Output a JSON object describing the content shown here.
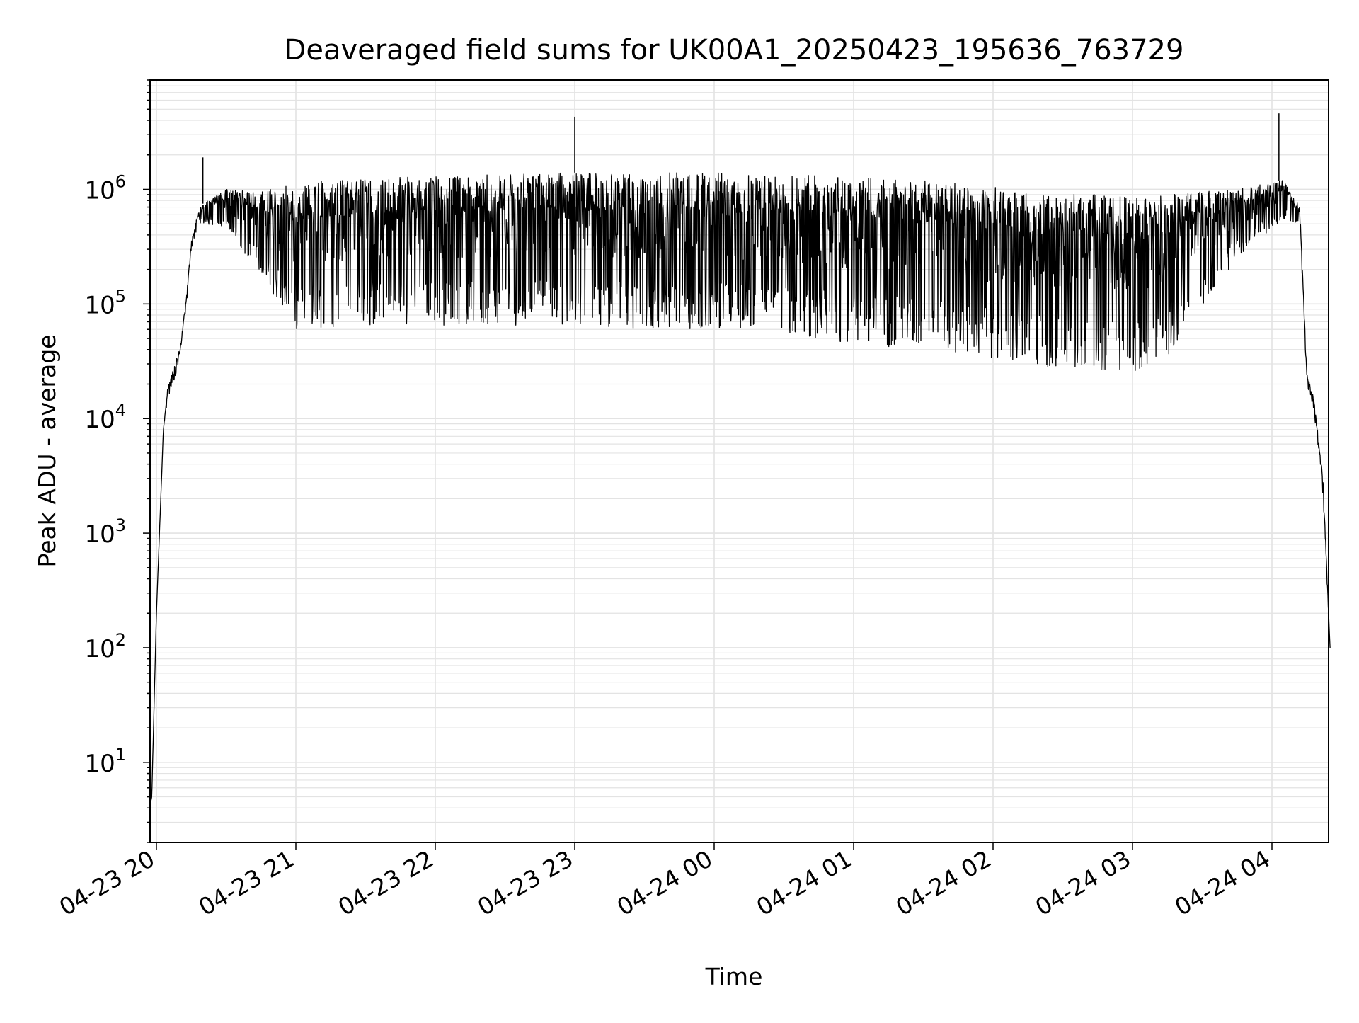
{
  "chart_data": {
    "type": "line",
    "title": "Deaveraged field sums for UK00A1_20250423_195636_763729",
    "xlabel": "Time",
    "ylabel": "Peak ADU - average",
    "yscale": "log",
    "ylim": [
      2,
      9000000
    ],
    "xlim": [
      "2025-04-23 19:57",
      "2025-04-24 04:26"
    ],
    "x_ticks": [
      "04-23 20",
      "04-23 21",
      "04-23 22",
      "04-23 23",
      "04-24 00",
      "04-24 01",
      "04-24 02",
      "04-24 03",
      "04-24 04"
    ],
    "y_ticks": [
      {
        "base": "10",
        "exp": "1"
      },
      {
        "base": "10",
        "exp": "2"
      },
      {
        "base": "10",
        "exp": "3"
      },
      {
        "base": "10",
        "exp": "4"
      },
      {
        "base": "10",
        "exp": "5"
      },
      {
        "base": "10",
        "exp": "6"
      }
    ],
    "grid": true,
    "line_color": "#000000",
    "grid_color": "#e3e3e3",
    "series": [
      {
        "upper_envelope": [
          [
            "2025-04-23 19:57",
            4
          ],
          [
            "2025-04-23 19:58",
            5
          ],
          [
            "2025-04-23 20:00",
            200
          ],
          [
            "2025-04-23 20:03",
            8000
          ],
          [
            "2025-04-23 20:05",
            20000
          ],
          [
            "2025-04-23 20:10",
            40000
          ],
          [
            "2025-04-23 20:13",
            120000
          ],
          [
            "2025-04-23 20:15",
            350000
          ],
          [
            "2025-04-23 20:18",
            650000
          ],
          [
            "2025-04-23 20:20",
            750000
          ],
          [
            "2025-04-23 20:30",
            1000000
          ],
          [
            "2025-04-23 20:45",
            950000
          ],
          [
            "2025-04-23 21:00",
            1150000
          ],
          [
            "2025-04-23 21:30",
            1250000
          ],
          [
            "2025-04-23 22:00",
            1300000
          ],
          [
            "2025-04-23 22:30",
            1350000
          ],
          [
            "2025-04-23 23:00",
            1400000
          ],
          [
            "2025-04-23 23:30",
            1400000
          ],
          [
            "2025-04-24 00:00",
            1400000
          ],
          [
            "2025-04-24 00:30",
            1350000
          ],
          [
            "2025-04-24 01:00",
            1300000
          ],
          [
            "2025-04-24 01:30",
            1200000
          ],
          [
            "2025-04-24 02:00",
            1050000
          ],
          [
            "2025-04-24 02:30",
            950000
          ],
          [
            "2025-04-24 03:00",
            850000
          ],
          [
            "2025-04-24 03:30",
            950000
          ],
          [
            "2025-04-24 03:50",
            1050000
          ],
          [
            "2025-04-24 04:05",
            1200000
          ],
          [
            "2025-04-24 04:12",
            700000
          ],
          [
            "2025-04-24 04:15",
            25000
          ],
          [
            "2025-04-24 04:18",
            15000
          ],
          [
            "2025-04-24 04:22",
            3000
          ],
          [
            "2025-04-24 04:25",
            100
          ]
        ],
        "lower_envelope": [
          [
            "2025-04-23 19:57",
            4
          ],
          [
            "2025-04-23 19:58",
            5
          ],
          [
            "2025-04-23 20:00",
            200
          ],
          [
            "2025-04-23 20:03",
            8000
          ],
          [
            "2025-04-23 20:05",
            15000
          ],
          [
            "2025-04-23 20:10",
            30000
          ],
          [
            "2025-04-23 20:13",
            100000
          ],
          [
            "2025-04-23 20:15",
            300000
          ],
          [
            "2025-04-23 20:18",
            500000
          ],
          [
            "2025-04-23 20:30",
            450000
          ],
          [
            "2025-04-23 20:45",
            180000
          ],
          [
            "2025-04-23 21:00",
            60000
          ],
          [
            "2025-04-23 21:30",
            65000
          ],
          [
            "2025-04-23 22:00",
            65000
          ],
          [
            "2025-04-23 22:30",
            65000
          ],
          [
            "2025-04-23 23:00",
            65000
          ],
          [
            "2025-04-23 23:30",
            60000
          ],
          [
            "2025-04-24 00:00",
            60000
          ],
          [
            "2025-04-24 00:30",
            55000
          ],
          [
            "2025-04-24 01:00",
            45000
          ],
          [
            "2025-04-24 01:30",
            40000
          ],
          [
            "2025-04-24 02:00",
            32000
          ],
          [
            "2025-04-24 02:30",
            27000
          ],
          [
            "2025-04-24 03:00",
            25000
          ],
          [
            "2025-04-24 03:15",
            35000
          ],
          [
            "2025-04-24 03:30",
            90000
          ],
          [
            "2025-04-24 03:45",
            250000
          ],
          [
            "2025-04-24 04:00",
            450000
          ],
          [
            "2025-04-24 04:05",
            550000
          ],
          [
            "2025-04-24 04:12",
            500000
          ],
          [
            "2025-04-24 04:15",
            20000
          ],
          [
            "2025-04-24 04:18",
            12000
          ],
          [
            "2025-04-24 04:22",
            2000
          ],
          [
            "2025-04-24 04:25",
            100
          ]
        ],
        "spikes": [
          [
            "2025-04-23 20:20",
            1900000
          ],
          [
            "2025-04-23 23:00",
            4300000
          ],
          [
            "2025-04-24 04:03",
            4600000
          ]
        ]
      }
    ]
  }
}
